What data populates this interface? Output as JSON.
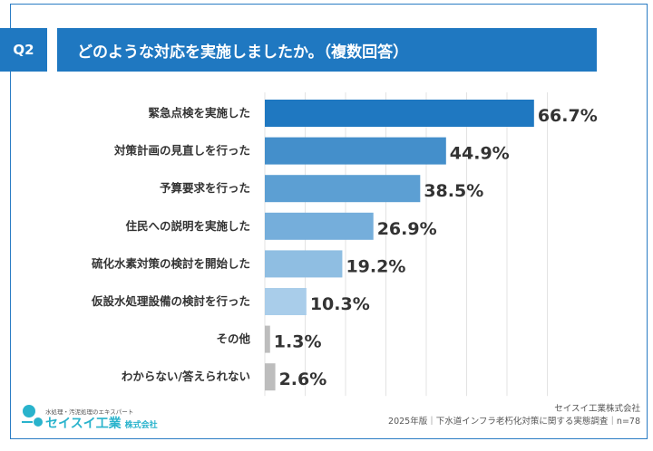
{
  "header": {
    "question_number": "Q2",
    "title": "どのような対応を実施しましたか。（複数回答）"
  },
  "chart_data": {
    "type": "bar",
    "orientation": "horizontal",
    "categories": [
      "緊急点検を実施した",
      "対策計画の見直しを行った",
      "予算要求を行った",
      "住民への説明を実施した",
      "硫化水素対策の検討を開始した",
      "仮設水処理設備の検討を行った",
      "その他",
      "わからない/答えられない"
    ],
    "values": [
      66.7,
      44.9,
      38.5,
      26.9,
      19.2,
      10.3,
      1.3,
      2.6
    ],
    "value_labels": [
      "66.7%",
      "44.9%",
      "38.5%",
      "26.9%",
      "19.2%",
      "10.3%",
      "1.3%",
      "2.6%"
    ],
    "colors": [
      "#1f78c1",
      "#448fcb",
      "#5c9fd3",
      "#75aedb",
      "#8fbee2",
      "#a9cdea",
      "#bdbdbd",
      "#bdbdbd"
    ],
    "xlim": [
      0,
      100
    ],
    "grid": true
  },
  "footer": {
    "logo_tagline": "水処理・汚泥処理のエキスパート",
    "logo_name": "セイスイ工業",
    "logo_suffix": "株式会社",
    "company": "セイスイ工業株式会社",
    "source": "2025年版｜下水道インフラ老朽化対策に関する実態調査｜n=78"
  }
}
